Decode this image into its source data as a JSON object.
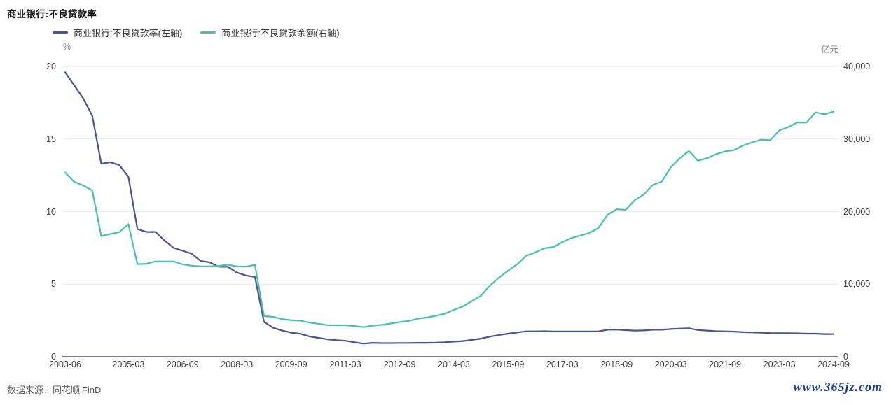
{
  "title": "商业银行:不良贷款率",
  "legend": [
    {
      "label": "商业银行:不良贷款率(左轴)",
      "color": "#4a5490",
      "swatch_icon": "line-swatch-icon"
    },
    {
      "label": "商业银行:不良贷款余额(右轴)",
      "color": "#49c0ab",
      "swatch_icon": "line-swatch-icon"
    }
  ],
  "left_axis": {
    "unit": "%",
    "ticks": [
      "20",
      "15",
      "10",
      "5",
      "0"
    ]
  },
  "right_axis": {
    "unit": "亿元",
    "ticks": [
      "40,000",
      "30,000",
      "20,000",
      "10,000",
      "0"
    ]
  },
  "footer": {
    "source": "数据来源：同花顺iFinD",
    "watermark": "www.365jz.com"
  },
  "colors": {
    "rate_line": "#4a5490",
    "balance_line": "#49c0ab",
    "gridline": "#e9ebf2",
    "axis_line": "#4d5470",
    "watermark_blue": "#1c3f94"
  },
  "chart_data": {
    "type": "line",
    "title": "商业银行:不良贷款率",
    "grid": true,
    "legend_position": "top-left",
    "left_ylim": [
      0,
      20
    ],
    "right_ylim": [
      0,
      40000
    ],
    "left_unit": "%",
    "right_unit": "亿元",
    "x_tick_labels": [
      "2003-06",
      "2005-03",
      "2006-09",
      "2008-03",
      "2009-09",
      "2011-03",
      "2012-09",
      "2014-03",
      "2015-09",
      "2017-03",
      "2018-09",
      "2020-03",
      "2021-09",
      "2023-03",
      "2024-09"
    ],
    "x": [
      "2003-06",
      "2003-09",
      "2003-12",
      "2004-03",
      "2004-06",
      "2004-09",
      "2004-12",
      "2005-03",
      "2005-06",
      "2005-09",
      "2005-12",
      "2006-03",
      "2006-06",
      "2006-09",
      "2006-12",
      "2007-03",
      "2007-06",
      "2007-09",
      "2007-12",
      "2008-03",
      "2008-06",
      "2008-09",
      "2008-12",
      "2009-03",
      "2009-06",
      "2009-09",
      "2009-12",
      "2010-03",
      "2010-06",
      "2010-09",
      "2010-12",
      "2011-03",
      "2011-06",
      "2011-09",
      "2011-12",
      "2012-03",
      "2012-06",
      "2012-09",
      "2012-12",
      "2013-03",
      "2013-06",
      "2013-09",
      "2013-12",
      "2014-03",
      "2014-06",
      "2014-09",
      "2014-12",
      "2015-03",
      "2015-06",
      "2015-09",
      "2015-12",
      "2016-03",
      "2016-06",
      "2016-09",
      "2016-12",
      "2017-03",
      "2017-06",
      "2017-09",
      "2017-12",
      "2018-03",
      "2018-06",
      "2018-09",
      "2018-12",
      "2019-03",
      "2019-06",
      "2019-09",
      "2019-12",
      "2020-03",
      "2020-06",
      "2020-09",
      "2020-12",
      "2021-03",
      "2021-06",
      "2021-09",
      "2021-12",
      "2022-03",
      "2022-06",
      "2022-09",
      "2022-12",
      "2023-03",
      "2023-06",
      "2023-09",
      "2023-12",
      "2024-03",
      "2024-06",
      "2024-09"
    ],
    "series": [
      {
        "name": "商业银行:不良贷款率(左轴)",
        "axis": "left",
        "color": "#4a5490",
        "values": [
          19.6,
          18.7,
          17.8,
          16.6,
          13.3,
          13.4,
          13.2,
          12.4,
          8.8,
          8.6,
          8.6,
          8.0,
          7.5,
          7.3,
          7.1,
          6.6,
          6.5,
          6.2,
          6.2,
          5.8,
          5.6,
          5.5,
          2.4,
          2.0,
          1.8,
          1.66,
          1.58,
          1.4,
          1.3,
          1.2,
          1.14,
          1.1,
          1.0,
          0.9,
          0.96,
          0.94,
          0.94,
          0.95,
          0.95,
          0.96,
          0.96,
          0.97,
          1.0,
          1.04,
          1.08,
          1.16,
          1.25,
          1.39,
          1.5,
          1.59,
          1.67,
          1.75,
          1.75,
          1.76,
          1.74,
          1.74,
          1.74,
          1.74,
          1.74,
          1.75,
          1.86,
          1.87,
          1.83,
          1.8,
          1.81,
          1.86,
          1.86,
          1.91,
          1.94,
          1.96,
          1.84,
          1.8,
          1.76,
          1.75,
          1.73,
          1.69,
          1.67,
          1.66,
          1.63,
          1.62,
          1.62,
          1.61,
          1.59,
          1.59,
          1.56,
          1.56
        ]
      },
      {
        "name": "商业银行:不良贷款余额(右轴)",
        "axis": "right",
        "color": "#49c0ab",
        "values": [
          25400,
          24100,
          23600,
          22900,
          16631,
          16904,
          17176,
          18274,
          12759,
          12808,
          13134,
          13124,
          13127,
          12736,
          12549,
          12455,
          12457,
          12518,
          12684,
          12456,
          12425,
          12654,
          5603,
          5495,
          5181,
          5045,
          4973,
          4701,
          4549,
          4354,
          4336,
          4333,
          4229,
          4078,
          4279,
          4382,
          4564,
          4788,
          4929,
          5243,
          5395,
          5636,
          5921,
          6461,
          6944,
          7669,
          8426,
          9825,
          10919,
          11863,
          12744,
          13921,
          14373,
          14939,
          15123,
          15795,
          16358,
          16704,
          17057,
          17742,
          19571,
          20322,
          20254,
          21571,
          22352,
          23672,
          24135,
          26121,
          27364,
          28350,
          27015,
          27355,
          27910,
          28292,
          28470,
          29116,
          29541,
          29912,
          29829,
          31189,
          31660,
          32286,
          32256,
          33674,
          33399,
          33791
        ]
      }
    ]
  }
}
